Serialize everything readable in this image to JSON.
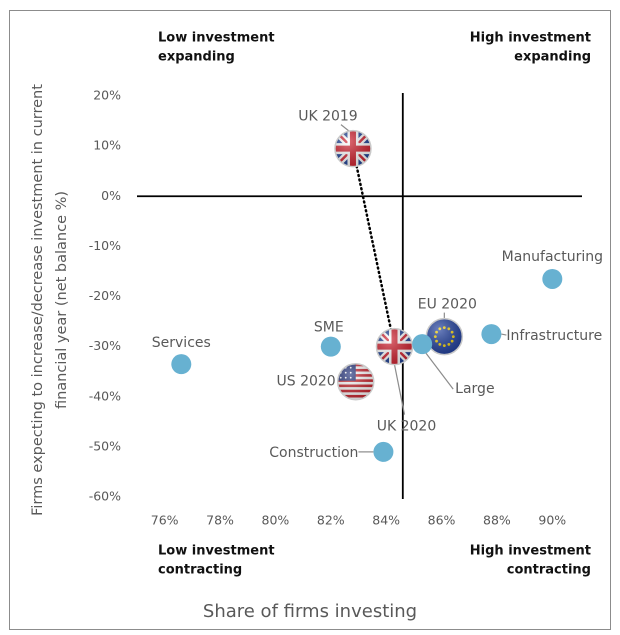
{
  "chart_data": {
    "type": "scatter",
    "xlabel": "Share of firms investing",
    "ylabel": [
      "Firms expecting to increase/decrease investment in current",
      "financial year  (net balance %)"
    ],
    "quadrant_labels": {
      "top_left": [
        "Low investment",
        "expanding"
      ],
      "top_right": [
        "High investment",
        "expanding"
      ],
      "bottom_left": [
        "Low investment",
        "contracting"
      ],
      "bottom_right": [
        "High investment",
        "contracting"
      ]
    },
    "quadrant_lines": {
      "x": 84.6,
      "y": 0
    },
    "series": [
      {
        "color": "#67b1d1",
        "labels": [
          "UK 2019",
          "UK 2020",
          "EU 2020",
          "US 2020",
          "SME",
          "Large",
          "Infrastructure",
          "Manufacturing",
          "Services",
          "Construction"
        ],
        "markers": [
          "flag-uk",
          "flag-uk",
          "flag-eu",
          "flag-us",
          "circle",
          "circle",
          "circle",
          "circle",
          "circle",
          "circle"
        ],
        "x": [
          82.8,
          84.3,
          86.1,
          82.9,
          82.0,
          85.3,
          87.8,
          90.0,
          76.6,
          83.9
        ],
        "values": [
          9.5,
          -30,
          -28,
          -37,
          -30,
          -29.5,
          -27.5,
          -16.5,
          -33.5,
          -51
        ]
      }
    ],
    "xlim": [
      75,
      91
    ],
    "ylim": [
      -60,
      20
    ],
    "xticks": [
      {
        "value": 76,
        "label": "76%"
      },
      {
        "value": 78,
        "label": "78%"
      },
      {
        "value": 80,
        "label": "80%"
      },
      {
        "value": 82,
        "label": "82%"
      },
      {
        "value": 84,
        "label": "84%"
      },
      {
        "value": 86,
        "label": "86%"
      },
      {
        "value": 88,
        "label": "88%"
      },
      {
        "value": 90,
        "label": "90%"
      }
    ],
    "yticks": [
      {
        "value": 20,
        "label": "20%"
      },
      {
        "value": 10,
        "label": "10%"
      },
      {
        "value": 0,
        "label": "0%"
      },
      {
        "value": -10,
        "label": "-10%"
      },
      {
        "value": -20,
        "label": "-20%"
      },
      {
        "value": -30,
        "label": "-30%"
      },
      {
        "value": -40,
        "label": "-40%"
      },
      {
        "value": -50,
        "label": "-50%"
      },
      {
        "value": -60,
        "label": "-60%"
      }
    ]
  }
}
